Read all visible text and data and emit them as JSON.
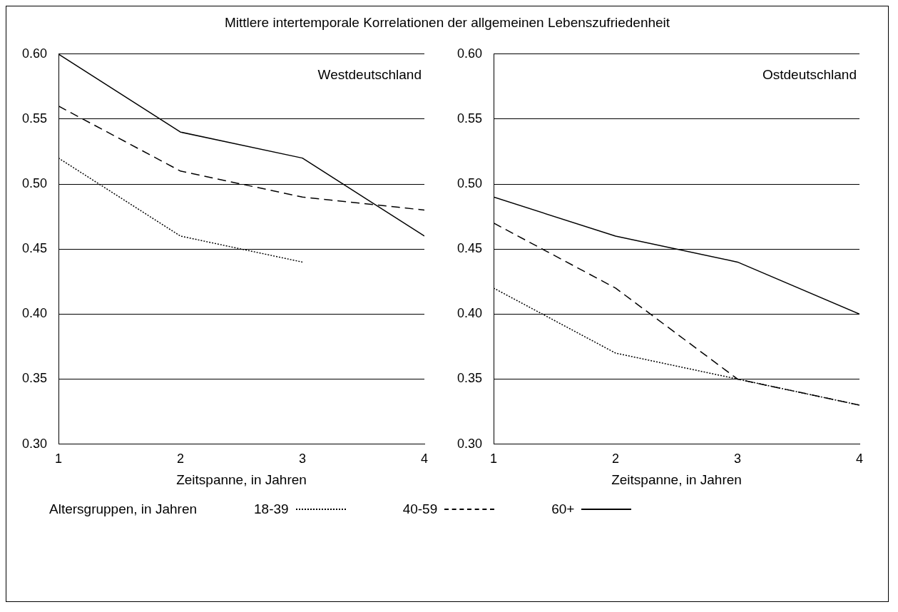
{
  "chart_data": [
    {
      "type": "line",
      "title": "Mittlere intertemporale Korrelationen der allgemeinen Lebenszufriedenheit",
      "xlabel": "Zeitspanne, in Jahren",
      "legend_title": "Altersgruppen, in Jahren",
      "legend": "bottom",
      "annotations": [
        "Westdeutschland"
      ],
      "x": [
        1,
        2,
        3,
        4
      ],
      "xlim": [
        1,
        4
      ],
      "xticks": [
        1,
        2,
        3,
        4
      ],
      "ylim": [
        0.3,
        0.6
      ],
      "yticks": [
        {
          "value": 0.3,
          "label": "0.30"
        },
        {
          "value": 0.35,
          "label": "0.35"
        },
        {
          "value": 0.4,
          "label": "0.40"
        },
        {
          "value": 0.45,
          "label": "0.45"
        },
        {
          "value": 0.5,
          "label": "0.50"
        },
        {
          "value": 0.55,
          "label": "0.55"
        },
        {
          "value": 0.6,
          "label": "0.60"
        }
      ],
      "grid": "y",
      "marker": "none",
      "series": [
        {
          "name": "18-39",
          "color": "#000000",
          "line_style": "dotted",
          "values": [
            0.52,
            0.46,
            0.44,
            null
          ]
        },
        {
          "name": "40-59",
          "color": "#000000",
          "line_style": "dashed",
          "values": [
            0.56,
            0.51,
            0.49,
            0.48
          ]
        },
        {
          "name": "60+",
          "color": "#000000",
          "line_style": "solid",
          "values": [
            0.6,
            0.54,
            0.52,
            0.46
          ]
        }
      ]
    },
    {
      "type": "line",
      "xlabel": "Zeitspanne, in Jahren",
      "annotations": [
        "Ostdeutschland"
      ],
      "x": [
        1,
        2,
        3,
        4
      ],
      "xlim": [
        1,
        4
      ],
      "xticks": [
        1,
        2,
        3,
        4
      ],
      "ylim": [
        0.3,
        0.6
      ],
      "yticks": [
        {
          "value": 0.3,
          "label": "0.30"
        },
        {
          "value": 0.35,
          "label": "0.35"
        },
        {
          "value": 0.4,
          "label": "0.40"
        },
        {
          "value": 0.45,
          "label": "0.45"
        },
        {
          "value": 0.5,
          "label": "0.50"
        },
        {
          "value": 0.55,
          "label": "0.55"
        },
        {
          "value": 0.6,
          "label": "0.60"
        }
      ],
      "grid": "y",
      "marker": "none",
      "series": [
        {
          "color": "#000000",
          "line_style": "dotted",
          "values": [
            0.42,
            0.37,
            0.35,
            0.33
          ]
        },
        {
          "color": "#000000",
          "line_style": "dashed",
          "values": [
            0.47,
            0.42,
            0.35,
            0.33
          ]
        },
        {
          "color": "#000000",
          "line_style": "solid",
          "values": [
            0.49,
            0.46,
            0.44,
            0.4
          ]
        }
      ]
    }
  ]
}
